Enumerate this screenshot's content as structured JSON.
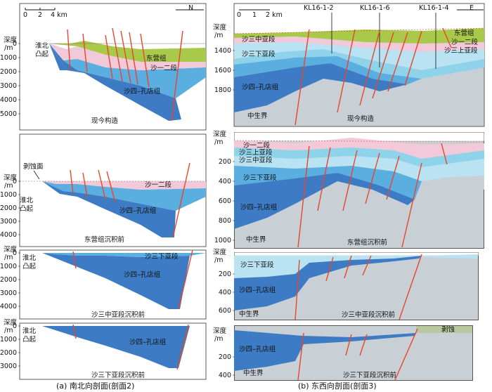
{
  "panel_a": {
    "caption": "(a) 南北向剖面(剖面2)",
    "sections": [
      {
        "title": "现今构造",
        "depth_label": "深度",
        "depth_unit": "/m",
        "ticks": [
          "0",
          "1000",
          "2000",
          "3000",
          "4000",
          "5000"
        ],
        "labels": {
          "uplift": "淮北",
          "uplift2": "凸起",
          "u1": "东营组",
          "u2": "沙一二段",
          "u3": "沙四–孔店组"
        },
        "scale": {
          "s0": "0",
          "s1": "2",
          "s2": "4 km"
        },
        "north": "N"
      },
      {
        "title": "东营组沉积前",
        "depth_label": "深度",
        "depth_unit": "/m",
        "ticks": [
          "0",
          "1000",
          "2000",
          "3000",
          "4000"
        ],
        "labels": {
          "erosion": "剥蚀面",
          "uplift": "淮北",
          "uplift2": "凸起",
          "u2": "沙一二段",
          "u3": "沙四–孔店组"
        }
      },
      {
        "title": "沙三中亚段沉积前",
        "depth_label": "深度",
        "depth_unit": "/m",
        "ticks": [
          "0",
          "1000",
          "2000",
          "3000",
          "4000"
        ],
        "labels": {
          "uplift": "淮北",
          "uplift2": "凸起",
          "u1": "沙三下亚段",
          "u3": "沙四–孔店组"
        }
      },
      {
        "title": "沙三下亚段沉积前",
        "depth_label": "深度",
        "depth_unit": "/m",
        "ticks": [
          "0",
          "1000",
          "2000",
          "3000"
        ],
        "labels": {
          "uplift": "淮北",
          "uplift2": "凸起",
          "u3": "沙四–孔店组"
        }
      }
    ]
  },
  "panel_b": {
    "caption": "(b) 东西向剖面(剖面3)",
    "sections": [
      {
        "title": "现今构造",
        "depth_label": "深度",
        "depth_unit": "/m",
        "ticks": [
          "1400",
          "1600",
          "1800"
        ],
        "wells": [
          "KL16-1-2",
          "KL16-1-6",
          "KL16-1-4"
        ],
        "labels": {
          "l1": "沙三中亚段",
          "l2": "沙三下亚段",
          "l3": "沙四–孔店组",
          "l4": "中生界",
          "r1": "东营组",
          "r2": "沙一二段",
          "r3": "沙三上亚段"
        },
        "scale": {
          "s0": "0",
          "s1": "1",
          "s2": "2 km"
        },
        "east": "E"
      },
      {
        "title": "东营组沉积前",
        "depth_label": "深度",
        "depth_unit": "/m",
        "ticks": [
          "200",
          "400",
          "600",
          "800",
          "1000"
        ],
        "labels": {
          "l0": "沙一二段",
          "l1": "沙三上亚段",
          "l2": "沙三中亚段",
          "l3": "沙三下亚段",
          "l4": "沙四–孔店组",
          "l5": "中生界"
        }
      },
      {
        "title": "沙三中亚段沉积前",
        "depth_label": "深度",
        "depth_unit": "/m",
        "ticks": [
          "200",
          "400",
          "600"
        ],
        "labels": {
          "l1": "沙三下亚段",
          "l2": "沙四–孔店组",
          "l3": "中生界"
        }
      },
      {
        "title": "沙三下亚段沉积前",
        "depth_label": "深度",
        "depth_unit": "/m",
        "ticks": [
          "200",
          "400"
        ],
        "labels": {
          "erosion": "剥蚀",
          "l2": "沙四–孔店组",
          "l3": "中生界"
        }
      }
    ]
  },
  "colors": {
    "dongying": "#a9c94a",
    "shayi": "#f2c9d8",
    "shasan_shang": "#8fd3ea",
    "shasan_zhong": "#b9e3f2",
    "shasan_xia": "#5aaee0",
    "shasi": "#3d7cc4",
    "mesozoic": "#c8d0d6",
    "fault": "#e8452c",
    "erosion": "#b8c9a0"
  }
}
